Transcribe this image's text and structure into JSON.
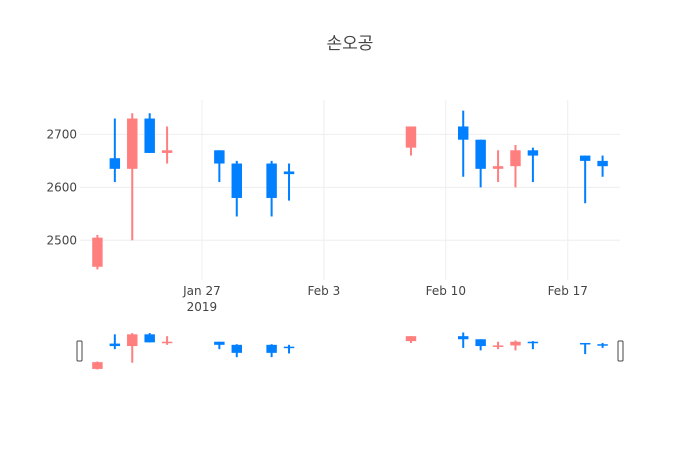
{
  "chart_data": {
    "type": "candlestick",
    "title": "손오공",
    "xlabel": "",
    "ylabel": "",
    "x_ticks": [
      "2019-01-27",
      "2019-02-03",
      "2019-02-10",
      "2019-02-17"
    ],
    "x_tick_labels": [
      "Jan 27",
      "Feb 3",
      "Feb 10",
      "Feb 17"
    ],
    "x_tick_year": "2019",
    "y_ticks": [
      2500,
      2600,
      2700
    ],
    "ylim": [
      2425,
      2765
    ],
    "xlim": [
      "2019-01-20",
      "2019-02-20"
    ],
    "increasing_color": "#ff7f7f",
    "decreasing_color": "#007fff",
    "grid": true,
    "legend": false,
    "rangeslider": true,
    "candles": [
      {
        "date": "2019-01-21",
        "open": 2450,
        "high": 2510,
        "low": 2445,
        "close": 2505
      },
      {
        "date": "2019-01-22",
        "open": 2655,
        "high": 2730,
        "low": 2610,
        "close": 2635
      },
      {
        "date": "2019-01-23",
        "open": 2635,
        "high": 2740,
        "low": 2500,
        "close": 2730
      },
      {
        "date": "2019-01-24",
        "open": 2730,
        "high": 2740,
        "low": 2665,
        "close": 2665
      },
      {
        "date": "2019-01-25",
        "open": 2665,
        "high": 2715,
        "low": 2645,
        "close": 2670
      },
      {
        "date": "2019-01-28",
        "open": 2670,
        "high": 2670,
        "low": 2610,
        "close": 2645
      },
      {
        "date": "2019-01-29",
        "open": 2645,
        "high": 2650,
        "low": 2545,
        "close": 2580
      },
      {
        "date": "2019-01-31",
        "open": 2645,
        "high": 2650,
        "low": 2545,
        "close": 2580
      },
      {
        "date": "2019-02-01",
        "open": 2630,
        "high": 2645,
        "low": 2575,
        "close": 2625
      },
      {
        "date": "2019-02-08",
        "open": 2675,
        "high": 2715,
        "low": 2660,
        "close": 2715
      },
      {
        "date": "2019-02-11",
        "open": 2715,
        "high": 2745,
        "low": 2620,
        "close": 2690
      },
      {
        "date": "2019-02-12",
        "open": 2690,
        "high": 2690,
        "low": 2600,
        "close": 2635
      },
      {
        "date": "2019-02-13",
        "open": 2635,
        "high": 2670,
        "low": 2610,
        "close": 2640
      },
      {
        "date": "2019-02-14",
        "open": 2640,
        "high": 2680,
        "low": 2600,
        "close": 2670
      },
      {
        "date": "2019-02-15",
        "open": 2670,
        "high": 2675,
        "low": 2610,
        "close": 2660
      },
      {
        "date": "2019-02-18",
        "open": 2660,
        "high": 2660,
        "low": 2570,
        "close": 2650
      },
      {
        "date": "2019-02-19",
        "open": 2650,
        "high": 2660,
        "low": 2620,
        "close": 2640
      }
    ]
  }
}
